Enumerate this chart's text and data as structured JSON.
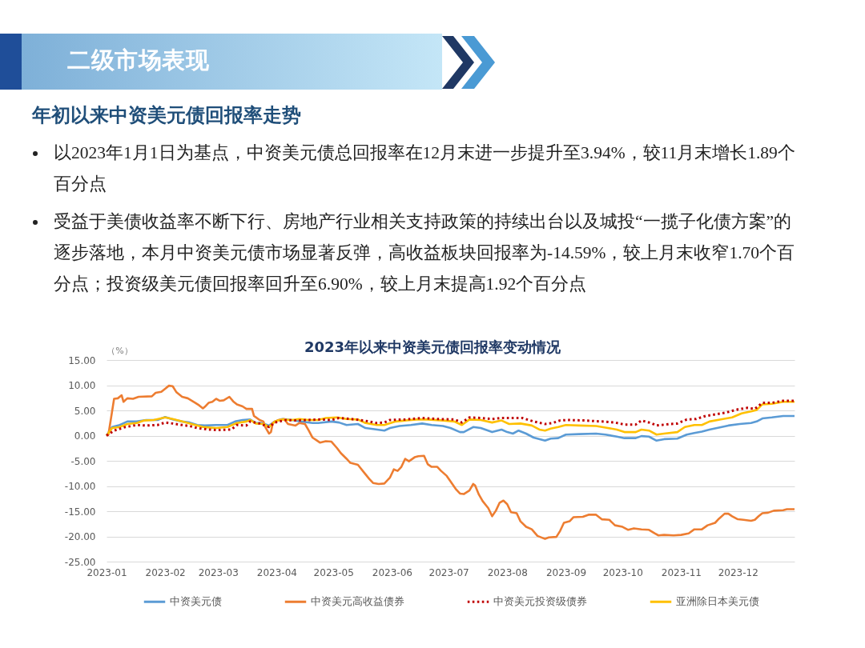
{
  "chart_data": {
    "type": "line",
    "title": "2023年以来中资美元债回报率变动情况",
    "ylabel": "（%）",
    "annotations": [
      "二级市场表现",
      "年初以来中资美元债回报率走势",
      "以2023年1月1日为基点，中资美元债总回报率在12月末进一步提升至3.94%，较11月末增长1.89个百分点",
      "受益于美债收益率不断下行、房地产行业相关支持政策的持续出台以及城投“一揽子化债方案”的逐步落地，本月中资美元债市场显著反弹，高收益板块回报率为-14.59%，较上月末收窄1.70个百分点；投资级美元债回报率回升至6.90%，较上月末提高1.92个百分点"
    ],
    "xlim": [
      "2023-01-01",
      "2023-12-31"
    ],
    "xticks": [
      {
        "value": "2023-01-01",
        "label": "2023-01"
      },
      {
        "value": "2023-02-01",
        "label": "2023-02"
      },
      {
        "value": "2023-03-01",
        "label": "2023-03"
      },
      {
        "value": "2023-04-01",
        "label": "2023-04"
      },
      {
        "value": "2023-05-01",
        "label": "2023-05"
      },
      {
        "value": "2023-06-01",
        "label": "2023-06"
      },
      {
        "value": "2023-07-01",
        "label": "2023-07"
      },
      {
        "value": "2023-08-01",
        "label": "2023-08"
      },
      {
        "value": "2023-09-01",
        "label": "2023-09"
      },
      {
        "value": "2023-10-01",
        "label": "2023-10"
      },
      {
        "value": "2023-11-01",
        "label": "2023-11"
      },
      {
        "value": "2023-12-01",
        "label": "2023-12"
      }
    ],
    "ylim": [
      -25,
      15
    ],
    "yticks": [
      {
        "value": -25,
        "label": "-25.00"
      },
      {
        "value": -20,
        "label": "-20.00"
      },
      {
        "value": -15,
        "label": "-15.00"
      },
      {
        "value": -10,
        "label": "-10.00"
      },
      {
        "value": -5,
        "label": "-5.00"
      },
      {
        "value": 0,
        "label": "0.00"
      },
      {
        "value": 5,
        "label": "5.00"
      },
      {
        "value": 10,
        "label": "10.00"
      },
      {
        "value": 15,
        "label": "15.00"
      }
    ],
    "grid": "y",
    "legend": "bottom",
    "series": [
      {
        "name": "中资美元债",
        "color": "#5b9bd5",
        "line_style": "solid",
        "x": [
          "2023-01-01",
          "2023-01-04",
          "2023-01-08",
          "2023-01-12",
          "2023-01-17",
          "2023-01-22",
          "2023-01-28",
          "2023-02-01",
          "2023-02-05",
          "2023-02-10",
          "2023-02-14",
          "2023-02-18",
          "2023-02-22",
          "2023-02-28",
          "2023-03-06",
          "2023-03-10",
          "2023-03-14",
          "2023-03-18",
          "2023-03-21",
          "2023-03-24",
          "2023-03-28",
          "2023-03-31",
          "2023-04-04",
          "2023-04-09",
          "2023-04-14",
          "2023-04-20",
          "2023-04-23",
          "2023-04-30",
          "2023-05-04",
          "2023-05-08",
          "2023-05-14",
          "2023-05-18",
          "2023-05-22",
          "2023-05-28",
          "2023-05-31",
          "2023-06-05",
          "2023-06-11",
          "2023-06-17",
          "2023-06-22",
          "2023-06-28",
          "2023-07-02",
          "2023-07-07",
          "2023-07-09",
          "2023-07-14",
          "2023-07-18",
          "2023-07-24",
          "2023-07-29",
          "2023-08-01",
          "2023-08-04",
          "2023-08-07",
          "2023-08-11",
          "2023-08-15",
          "2023-08-21",
          "2023-08-24",
          "2023-08-28",
          "2023-09-01",
          "2023-09-08",
          "2023-09-17",
          "2023-09-22",
          "2023-09-28",
          "2023-10-02",
          "2023-10-08",
          "2023-10-11",
          "2023-10-15",
          "2023-10-19",
          "2023-10-23",
          "2023-10-30",
          "2023-11-04",
          "2023-11-08",
          "2023-11-12",
          "2023-11-16",
          "2023-11-21",
          "2023-11-26",
          "2023-12-02",
          "2023-12-08",
          "2023-12-11",
          "2023-12-14",
          "2023-12-19",
          "2023-12-25",
          "2023-12-31"
        ],
        "values": [
          0,
          1.7,
          2.1,
          2.8,
          2.8,
          3.1,
          3.1,
          3.7,
          3.2,
          2.8,
          2.6,
          2.1,
          2.0,
          2.1,
          2.1,
          2.8,
          3.1,
          3.2,
          2.5,
          2.5,
          2.0,
          2.8,
          3.3,
          3.1,
          2.8,
          2.5,
          2.5,
          2.8,
          2.6,
          2.1,
          2.3,
          1.5,
          1.3,
          1.0,
          1.5,
          1.9,
          2.1,
          2.4,
          2.1,
          1.9,
          1.5,
          0.7,
          0.7,
          1.7,
          1.5,
          0.7,
          1.2,
          0.7,
          0.4,
          1.0,
          0.4,
          -0.4,
          -1.0,
          -0.6,
          -0.5,
          0.2,
          0.3,
          0.4,
          0.2,
          -0.2,
          -0.5,
          -0.5,
          -0.1,
          -0.2,
          -1.0,
          -0.7,
          -0.6,
          0.2,
          0.5,
          0.8,
          1.2,
          1.6,
          2.0,
          2.3,
          2.5,
          2.8,
          3.4,
          3.6,
          3.9,
          3.9
        ]
      },
      {
        "name": "中资美元高收益债券",
        "color": "#ed7d31",
        "line_style": "solid",
        "x": [
          "2023-01-01",
          "2023-01-02",
          "2023-01-05",
          "2023-01-07",
          "2023-01-09",
          "2023-01-10",
          "2023-01-12",
          "2023-01-15",
          "2023-01-18",
          "2023-01-25",
          "2023-01-27",
          "2023-01-30",
          "2023-02-01",
          "2023-02-03",
          "2023-02-05",
          "2023-02-07",
          "2023-02-10",
          "2023-02-13",
          "2023-02-17",
          "2023-02-19",
          "2023-02-21",
          "2023-02-22",
          "2023-02-24",
          "2023-02-26",
          "2023-02-28",
          "2023-03-02",
          "2023-03-04",
          "2023-03-07",
          "2023-03-09",
          "2023-03-11",
          "2023-03-14",
          "2023-03-16",
          "2023-03-19",
          "2023-03-20",
          "2023-03-23",
          "2023-03-25",
          "2023-03-26",
          "2023-03-28",
          "2023-03-29",
          "2023-03-30",
          "2023-04-02",
          "2023-04-05",
          "2023-04-07",
          "2023-04-11",
          "2023-04-13",
          "2023-04-16",
          "2023-04-18",
          "2023-04-20",
          "2023-04-22",
          "2023-04-24",
          "2023-04-27",
          "2023-04-30",
          "2023-05-03",
          "2023-05-05",
          "2023-05-08",
          "2023-05-10",
          "2023-05-14",
          "2023-05-17",
          "2023-05-20",
          "2023-05-22",
          "2023-05-25",
          "2023-05-28",
          "2023-05-31",
          "2023-06-02",
          "2023-06-04",
          "2023-06-06",
          "2023-06-08",
          "2023-06-10",
          "2023-06-13",
          "2023-06-15",
          "2023-06-18",
          "2023-06-20",
          "2023-06-22",
          "2023-06-25",
          "2023-06-27",
          "2023-06-30",
          "2023-07-02",
          "2023-07-05",
          "2023-07-07",
          "2023-07-09",
          "2023-07-12",
          "2023-07-14",
          "2023-07-15",
          "2023-07-17",
          "2023-07-19",
          "2023-07-22",
          "2023-07-24",
          "2023-07-26",
          "2023-07-28",
          "2023-07-30",
          "2023-08-01",
          "2023-08-03",
          "2023-08-06",
          "2023-08-08",
          "2023-08-11",
          "2023-08-14",
          "2023-08-17",
          "2023-08-21",
          "2023-08-23",
          "2023-08-27",
          "2023-08-29",
          "2023-08-31",
          "2023-09-03",
          "2023-09-05",
          "2023-09-10",
          "2023-09-13",
          "2023-09-17",
          "2023-09-20",
          "2023-09-24",
          "2023-09-27",
          "2023-10-01",
          "2023-10-04",
          "2023-10-07",
          "2023-10-11",
          "2023-10-15",
          "2023-10-18",
          "2023-10-20",
          "2023-10-23",
          "2023-10-28",
          "2023-11-01",
          "2023-11-05",
          "2023-11-08",
          "2023-11-12",
          "2023-11-15",
          "2023-11-19",
          "2023-11-21",
          "2023-11-24",
          "2023-11-26",
          "2023-11-28",
          "2023-12-01",
          "2023-12-04",
          "2023-12-08",
          "2023-12-10",
          "2023-12-12",
          "2023-12-14",
          "2023-12-17",
          "2023-12-20",
          "2023-12-25",
          "2023-12-27",
          "2023-12-31"
        ],
        "values": [
          0,
          0.2,
          7.3,
          7.4,
          8.0,
          6.7,
          7.4,
          7.3,
          7.7,
          7.8,
          8.5,
          8.7,
          9.3,
          9.9,
          9.8,
          8.6,
          7.7,
          7.4,
          6.5,
          6.0,
          5.4,
          5.7,
          6.5,
          6.7,
          7.3,
          6.9,
          7.0,
          7.7,
          6.8,
          6.2,
          5.8,
          5.3,
          5.3,
          3.9,
          3.1,
          2.8,
          1.7,
          0.4,
          0.7,
          2.5,
          3.1,
          3.3,
          2.3,
          2.0,
          2.5,
          2.3,
          1.0,
          -0.4,
          -0.9,
          -1.4,
          -1.1,
          -1.2,
          -2.5,
          -3.5,
          -4.6,
          -5.4,
          -5.8,
          -7.2,
          -8.6,
          -9.4,
          -9.6,
          -9.5,
          -8.3,
          -6.7,
          -7.0,
          -6.2,
          -4.6,
          -5.1,
          -4.3,
          -4.1,
          -4.0,
          -5.7,
          -6.2,
          -6.2,
          -7.0,
          -8.0,
          -9.1,
          -10.7,
          -11.5,
          -11.6,
          -10.9,
          -9.6,
          -9.9,
          -11.7,
          -13.0,
          -14.4,
          -16.0,
          -14.9,
          -13.3,
          -12.9,
          -13.6,
          -15.2,
          -15.4,
          -17.0,
          -18.1,
          -18.6,
          -19.9,
          -20.5,
          -20.2,
          -20.1,
          -18.9,
          -17.3,
          -17.0,
          -16.2,
          -16.1,
          -15.7,
          -15.7,
          -16.6,
          -16.7,
          -17.8,
          -18.1,
          -18.7,
          -18.4,
          -18.6,
          -18.7,
          -19.4,
          -19.8,
          -19.7,
          -19.8,
          -19.7,
          -19.4,
          -18.6,
          -18.6,
          -17.8,
          -17.3,
          -16.5,
          -15.5,
          -15.5,
          -16.0,
          -16.6,
          -16.7,
          -16.9,
          -16.7,
          -16.0,
          -15.4,
          -15.3,
          -14.9,
          -14.8,
          -14.6,
          -14.6
        ]
      },
      {
        "name": "中资美元投资级债券",
        "color": "#c00000",
        "line_style": "dotted",
        "x": [
          "2023-01-01",
          "2023-01-05",
          "2023-01-11",
          "2023-01-17",
          "2023-01-22",
          "2023-01-28",
          "2023-02-01",
          "2023-02-05",
          "2023-02-10",
          "2023-02-14",
          "2023-02-18",
          "2023-02-24",
          "2023-03-01",
          "2023-03-08",
          "2023-03-11",
          "2023-03-16",
          "2023-03-18",
          "2023-03-23",
          "2023-03-28",
          "2023-03-31",
          "2023-04-06",
          "2023-04-11",
          "2023-04-18",
          "2023-04-24",
          "2023-04-30",
          "2023-05-04",
          "2023-05-10",
          "2023-05-15",
          "2023-05-20",
          "2023-05-24",
          "2023-05-28",
          "2023-05-31",
          "2023-06-08",
          "2023-06-17",
          "2023-06-25",
          "2023-07-04",
          "2023-07-08",
          "2023-07-12",
          "2023-07-18",
          "2023-07-24",
          "2023-07-29",
          "2023-08-04",
          "2023-08-09",
          "2023-08-15",
          "2023-08-21",
          "2023-08-25",
          "2023-08-29",
          "2023-09-02",
          "2023-09-11",
          "2023-09-20",
          "2023-09-27",
          "2023-10-02",
          "2023-10-08",
          "2023-10-11",
          "2023-10-16",
          "2023-10-19",
          "2023-10-26",
          "2023-10-30",
          "2023-11-04",
          "2023-11-09",
          "2023-11-14",
          "2023-11-19",
          "2023-11-25",
          "2023-12-01",
          "2023-12-06",
          "2023-12-10",
          "2023-12-14",
          "2023-12-19",
          "2023-12-25",
          "2023-12-31"
        ],
        "values": [
          0,
          1.0,
          1.7,
          2.1,
          2.0,
          2.1,
          2.6,
          2.4,
          2.1,
          1.9,
          1.5,
          1.2,
          1.1,
          1.2,
          2.1,
          2.0,
          2.8,
          2.4,
          1.7,
          2.6,
          3.1,
          3.0,
          3.1,
          3.2,
          3.1,
          3.5,
          3.3,
          3.1,
          2.8,
          2.5,
          2.6,
          3.1,
          3.2,
          3.5,
          3.3,
          3.2,
          2.6,
          3.6,
          3.5,
          3.3,
          3.5,
          3.5,
          3.5,
          2.8,
          2.3,
          2.5,
          3.0,
          3.1,
          3.0,
          2.8,
          2.6,
          2.2,
          2.2,
          3.0,
          2.5,
          2.0,
          2.3,
          2.4,
          3.2,
          3.3,
          3.9,
          4.2,
          4.6,
          5.2,
          5.5,
          5.3,
          6.5,
          6.5,
          6.9,
          6.9
        ]
      },
      {
        "name": "亚洲除日本美元债",
        "color": "#ffc000",
        "line_style": "solid",
        "x": [
          "2023-01-01",
          "2023-01-04",
          "2023-01-08",
          "2023-01-12",
          "2023-01-17",
          "2023-01-21",
          "2023-01-26",
          "2023-02-01",
          "2023-02-05",
          "2023-02-10",
          "2023-02-15",
          "2023-02-21",
          "2023-02-28",
          "2023-03-06",
          "2023-03-11",
          "2023-03-16",
          "2023-03-18",
          "2023-03-21",
          "2023-03-25",
          "2023-03-28",
          "2023-03-31",
          "2023-04-04",
          "2023-04-09",
          "2023-04-13",
          "2023-04-18",
          "2023-04-23",
          "2023-04-27",
          "2023-05-03",
          "2023-05-08",
          "2023-05-14",
          "2023-05-18",
          "2023-05-24",
          "2023-05-28",
          "2023-06-03",
          "2023-06-08",
          "2023-06-14",
          "2023-06-20",
          "2023-06-28",
          "2023-07-04",
          "2023-07-08",
          "2023-07-12",
          "2023-07-18",
          "2023-07-24",
          "2023-07-29",
          "2023-08-02",
          "2023-08-08",
          "2023-08-14",
          "2023-08-18",
          "2023-08-21",
          "2023-08-24",
          "2023-08-28",
          "2023-09-01",
          "2023-09-08",
          "2023-09-17",
          "2023-09-22",
          "2023-09-28",
          "2023-10-02",
          "2023-10-08",
          "2023-10-11",
          "2023-10-15",
          "2023-10-19",
          "2023-10-23",
          "2023-10-30",
          "2023-11-03",
          "2023-11-08",
          "2023-11-12",
          "2023-11-16",
          "2023-11-22",
          "2023-11-28",
          "2023-12-03",
          "2023-12-08",
          "2023-12-11",
          "2023-12-14",
          "2023-12-19",
          "2023-12-25",
          "2023-12-31"
        ],
        "values": [
          0,
          1.5,
          1.7,
          2.3,
          2.5,
          3.0,
          3.1,
          3.6,
          3.3,
          2.8,
          2.3,
          1.7,
          1.5,
          1.7,
          2.5,
          2.8,
          3.1,
          2.4,
          2.3,
          1.7,
          2.8,
          3.2,
          3.1,
          3.3,
          3.1,
          3.1,
          3.5,
          3.6,
          3.3,
          3.2,
          2.5,
          2.1,
          2.1,
          2.8,
          3.0,
          3.2,
          3.2,
          3.0,
          2.8,
          2.1,
          3.2,
          3.1,
          2.6,
          3.0,
          2.3,
          2.4,
          2.0,
          1.2,
          1.0,
          1.4,
          1.7,
          2.1,
          2.0,
          1.9,
          1.6,
          1.2,
          0.7,
          0.7,
          1.2,
          1.0,
          0.2,
          0.4,
          0.7,
          1.7,
          2.1,
          2.1,
          2.8,
          3.2,
          3.6,
          4.4,
          4.8,
          5.1,
          6.2,
          6.3,
          6.7,
          6.7
        ]
      }
    ]
  }
}
